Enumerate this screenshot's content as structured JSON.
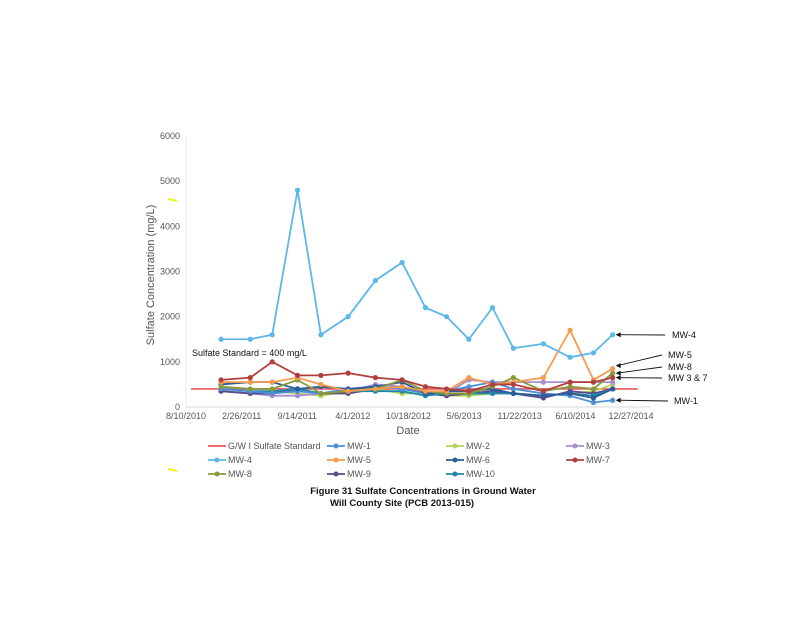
{
  "chart_data": {
    "type": "line",
    "title": "",
    "caption": [
      "Figure 31   Sulfate Concentrations in Ground Water",
      "Will County Site (PCB 2013-015)"
    ],
    "xlabel": "Date",
    "ylabel": "Sulfate Concentration (mg/L)",
    "ylim": [
      0,
      6000
    ],
    "yticks": [
      0,
      1000,
      2000,
      3000,
      4000,
      5000,
      6000
    ],
    "xlim": [
      "2010-08-10",
      "2014-12-27"
    ],
    "xticks": [
      "8/10/2010",
      "2/26/2011",
      "9/14/2011",
      "4/1/2012",
      "10/18/2012",
      "5/6/2013",
      "11/22/2013",
      "6/10/2014",
      "12/27/2014"
    ],
    "grid": false,
    "legend_position": "bottom",
    "standard_annotation": "Sulfate Standard = 400 mg/L",
    "dates": [
      "2010-12-14",
      "2011-03-29",
      "2011-06-16",
      "2011-09-15",
      "2011-12-08",
      "2012-03-15",
      "2012-06-21",
      "2012-09-25",
      "2012-12-18",
      "2013-03-04",
      "2013-05-23",
      "2013-08-16",
      "2013-10-30",
      "2014-02-15",
      "2014-05-22",
      "2014-08-14",
      "2014-10-22"
    ],
    "series": [
      {
        "name": "G/W I Sulfate Standard",
        "color": "#e8585d",
        "constant": 400,
        "markers": false
      },
      {
        "name": "MW-1",
        "color": "#4a90d9",
        "values": [
          400,
          350,
          300,
          350,
          300,
          400,
          450,
          400,
          300,
          350,
          450,
          550,
          400,
          300,
          250,
          100,
          150
        ]
      },
      {
        "name": "MW-2",
        "color": "#b5d35a",
        "values": [
          350,
          300,
          350,
          300,
          250,
          350,
          400,
          300,
          300,
          250,
          250,
          300,
          300,
          250,
          300,
          350,
          500
        ]
      },
      {
        "name": "MW-3",
        "color": "#a98fcf",
        "values": [
          350,
          300,
          250,
          250,
          300,
          350,
          500,
          450,
          300,
          300,
          600,
          550,
          550,
          550,
          550,
          550,
          550
        ]
      },
      {
        "name": "MW-4",
        "color": "#5bb8e8",
        "values": [
          1500,
          1500,
          1600,
          4800,
          1600,
          2000,
          2800,
          3200,
          2200,
          2000,
          1500,
          2200,
          1300,
          1400,
          1100,
          1200,
          1600
        ]
      },
      {
        "name": "MW-5",
        "color": "#f59a4f",
        "values": [
          550,
          550,
          550,
          650,
          500,
          350,
          400,
          450,
          350,
          350,
          650,
          500,
          550,
          650,
          1700,
          600,
          850
        ]
      },
      {
        "name": "MW-6",
        "color": "#2a5d9c",
        "values": [
          500,
          550,
          550,
          400,
          450,
          400,
          450,
          550,
          300,
          350,
          350,
          400,
          300,
          250,
          300,
          200,
          400
        ]
      },
      {
        "name": "MW-7",
        "color": "#b0403e",
        "values": [
          600,
          650,
          1000,
          700,
          700,
          750,
          650,
          600,
          450,
          400,
          350,
          500,
          500,
          350,
          550,
          550,
          650
        ]
      },
      {
        "name": "MW-8",
        "color": "#8a9a3a",
        "values": [
          450,
          400,
          400,
          600,
          300,
          350,
          400,
          600,
          350,
          300,
          300,
          450,
          650,
          350,
          450,
          400,
          750
        ]
      },
      {
        "name": "MW-9",
        "color": "#5c4a8a",
        "values": [
          350,
          300,
          300,
          400,
          300,
          300,
          400,
          450,
          300,
          250,
          300,
          350,
          300,
          200,
          350,
          300,
          400
        ]
      },
      {
        "name": "MW-10",
        "color": "#1f87a8",
        "values": [
          400,
          350,
          350,
          400,
          300,
          350,
          350,
          350,
          250,
          300,
          300,
          300,
          300,
          250,
          300,
          250,
          400
        ]
      }
    ],
    "callouts": [
      "MW-4",
      "MW-5",
      "MW-8",
      "MW 3 & 7",
      "MW-1"
    ]
  }
}
